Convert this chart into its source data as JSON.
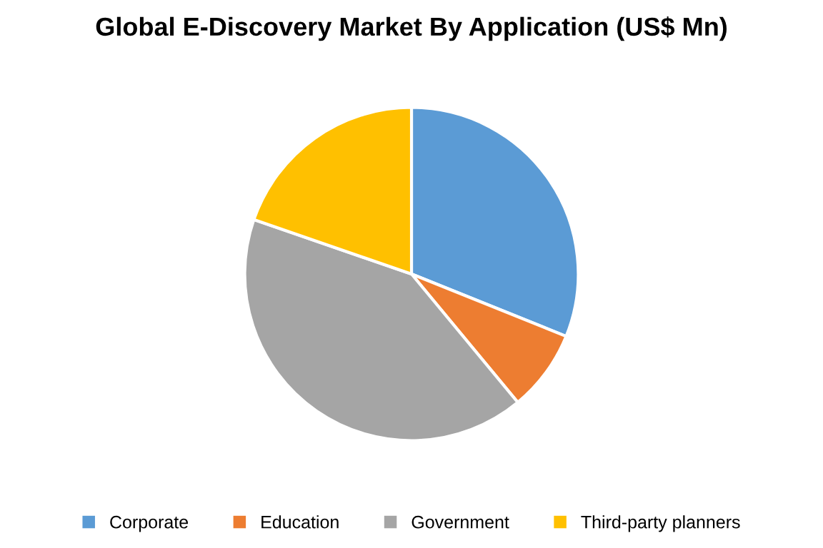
{
  "chart_data": {
    "type": "pie",
    "title": "Global E-Discovery Market By Application (US$ Mn)",
    "categories": [
      "Corporate",
      "Education",
      "Government",
      "Third-party planners"
    ],
    "values": [
      31.1,
      7.9,
      41.3,
      19.7
    ],
    "colors": [
      "#5b9bd5",
      "#ed7d31",
      "#a5a5a5",
      "#ffc000"
    ],
    "legend": "bottom"
  }
}
